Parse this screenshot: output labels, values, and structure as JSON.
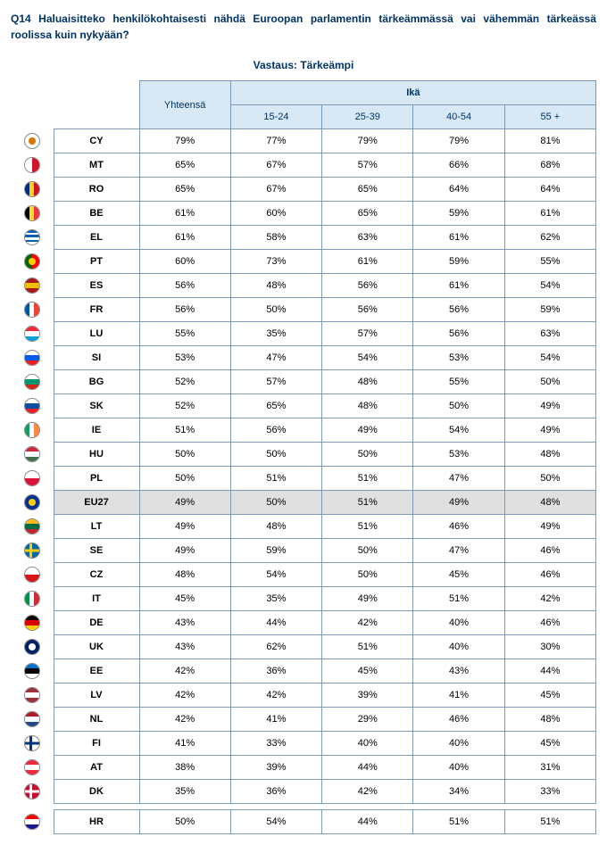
{
  "question": "Q14 Haluaisitteko henkilökohtaisesti nähdä Euroopan parlamentin tärkeämmässä vai vähemmän tärkeässä roolissa kuin nykyään?",
  "answer": "Vastaus: Tärkeämpi",
  "headers": {
    "total": "Yhteensä",
    "group": "Ikä",
    "cols": [
      "15-24",
      "25-39",
      "40-54",
      "55 +"
    ]
  },
  "colors": {
    "header_bg": "#d9e8f5",
    "border": "#7a9ab8",
    "text_header": "#003366",
    "highlight_bg": "#e0e0e0"
  },
  "rows": [
    {
      "code": "CY",
      "total": "79%",
      "v": [
        "77%",
        "79%",
        "79%",
        "81%"
      ]
    },
    {
      "code": "MT",
      "total": "65%",
      "v": [
        "67%",
        "57%",
        "66%",
        "68%"
      ]
    },
    {
      "code": "RO",
      "total": "65%",
      "v": [
        "67%",
        "65%",
        "64%",
        "64%"
      ]
    },
    {
      "code": "BE",
      "total": "61%",
      "v": [
        "60%",
        "65%",
        "59%",
        "61%"
      ]
    },
    {
      "code": "EL",
      "total": "61%",
      "v": [
        "58%",
        "63%",
        "61%",
        "62%"
      ]
    },
    {
      "code": "PT",
      "total": "60%",
      "v": [
        "73%",
        "61%",
        "59%",
        "55%"
      ]
    },
    {
      "code": "ES",
      "total": "56%",
      "v": [
        "48%",
        "56%",
        "61%",
        "54%"
      ]
    },
    {
      "code": "FR",
      "total": "56%",
      "v": [
        "50%",
        "56%",
        "56%",
        "59%"
      ]
    },
    {
      "code": "LU",
      "total": "55%",
      "v": [
        "35%",
        "57%",
        "56%",
        "63%"
      ]
    },
    {
      "code": "SI",
      "total": "53%",
      "v": [
        "47%",
        "54%",
        "53%",
        "54%"
      ]
    },
    {
      "code": "BG",
      "total": "52%",
      "v": [
        "57%",
        "48%",
        "55%",
        "50%"
      ]
    },
    {
      "code": "SK",
      "total": "52%",
      "v": [
        "65%",
        "48%",
        "50%",
        "49%"
      ]
    },
    {
      "code": "IE",
      "total": "51%",
      "v": [
        "56%",
        "49%",
        "54%",
        "49%"
      ]
    },
    {
      "code": "HU",
      "total": "50%",
      "v": [
        "50%",
        "50%",
        "53%",
        "48%"
      ]
    },
    {
      "code": "PL",
      "total": "50%",
      "v": [
        "51%",
        "51%",
        "47%",
        "50%"
      ]
    },
    {
      "code": "EU27",
      "total": "49%",
      "v": [
        "50%",
        "51%",
        "49%",
        "48%"
      ],
      "highlight": true
    },
    {
      "code": "LT",
      "total": "49%",
      "v": [
        "48%",
        "51%",
        "46%",
        "49%"
      ]
    },
    {
      "code": "SE",
      "total": "49%",
      "v": [
        "59%",
        "50%",
        "47%",
        "46%"
      ]
    },
    {
      "code": "CZ",
      "total": "48%",
      "v": [
        "54%",
        "50%",
        "45%",
        "46%"
      ]
    },
    {
      "code": "IT",
      "total": "45%",
      "v": [
        "35%",
        "49%",
        "51%",
        "42%"
      ]
    },
    {
      "code": "DE",
      "total": "43%",
      "v": [
        "44%",
        "42%",
        "40%",
        "46%"
      ]
    },
    {
      "code": "UK",
      "total": "43%",
      "v": [
        "62%",
        "51%",
        "40%",
        "30%"
      ]
    },
    {
      "code": "EE",
      "total": "42%",
      "v": [
        "36%",
        "45%",
        "43%",
        "44%"
      ]
    },
    {
      "code": "LV",
      "total": "42%",
      "v": [
        "42%",
        "39%",
        "41%",
        "45%"
      ]
    },
    {
      "code": "NL",
      "total": "42%",
      "v": [
        "41%",
        "29%",
        "46%",
        "48%"
      ]
    },
    {
      "code": "FI",
      "total": "41%",
      "v": [
        "33%",
        "40%",
        "40%",
        "45%"
      ]
    },
    {
      "code": "AT",
      "total": "38%",
      "v": [
        "39%",
        "44%",
        "40%",
        "31%"
      ]
    },
    {
      "code": "DK",
      "total": "35%",
      "v": [
        "36%",
        "42%",
        "34%",
        "33%"
      ]
    }
  ],
  "extra_rows": [
    {
      "code": "HR",
      "total": "50%",
      "v": [
        "54%",
        "44%",
        "51%",
        "51%"
      ]
    }
  ]
}
